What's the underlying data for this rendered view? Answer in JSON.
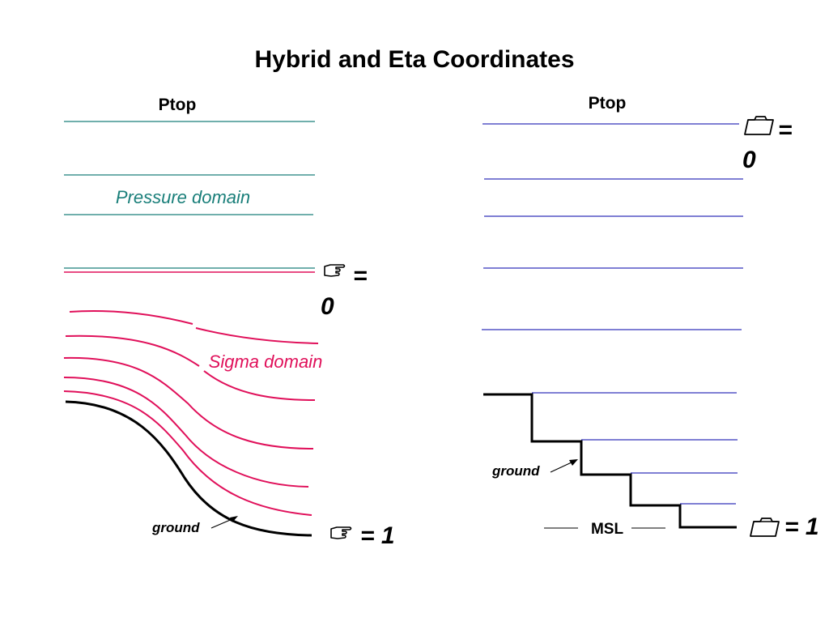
{
  "title": "Hybrid and Eta Coordinates",
  "colors": {
    "pressure": "#1a7f7a",
    "sigma": "#e0105a",
    "eta": "#3333bb",
    "ground": "#000000"
  },
  "left_panel": {
    "ptop_label": "Ptop",
    "pressure_domain_label": "Pressure domain",
    "sigma_domain_label": "Sigma domain",
    "ground_label": "ground",
    "top_coord": {
      "symbol_icon": "pointing-hand-icon",
      "value": "= 0",
      "value_line1": "=",
      "value_line2": "0"
    },
    "bottom_coord": {
      "symbol_icon": "pointing-hand-icon",
      "value": "= 1"
    }
  },
  "right_panel": {
    "ptop_label": "Ptop",
    "ground_label": "ground",
    "msl_label": "MSL",
    "top_coord": {
      "symbol_icon": "folder-icon",
      "value": "= 0",
      "value_line1": "=",
      "value_line2": "0"
    },
    "bottom_coord": {
      "symbol_icon": "folder-icon",
      "value": "= 1"
    }
  }
}
